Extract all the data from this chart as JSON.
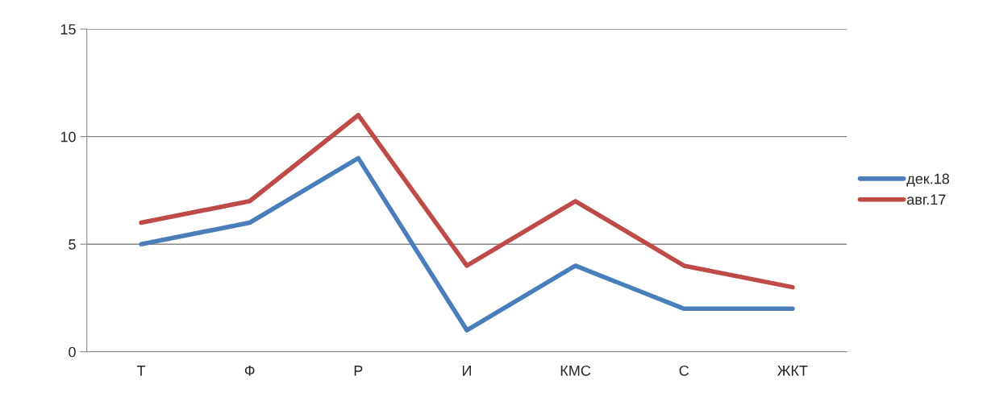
{
  "chart_data": {
    "type": "line",
    "categories": [
      "Т",
      "Ф",
      "Р",
      "И",
      "КМС",
      "С",
      "ЖКТ"
    ],
    "series": [
      {
        "name": "дек.18",
        "color": "#4a7ebb",
        "values": [
          5,
          6,
          9,
          1,
          4,
          2,
          2
        ]
      },
      {
        "name": "авг.17",
        "color": "#be4b48",
        "values": [
          6,
          7,
          11,
          4,
          7,
          4,
          3
        ]
      }
    ],
    "ylim": [
      0,
      15
    ],
    "yticks": [
      0,
      5,
      10,
      15
    ],
    "grid": "y",
    "legend": "right",
    "marker": "none",
    "line_style": "solid"
  }
}
